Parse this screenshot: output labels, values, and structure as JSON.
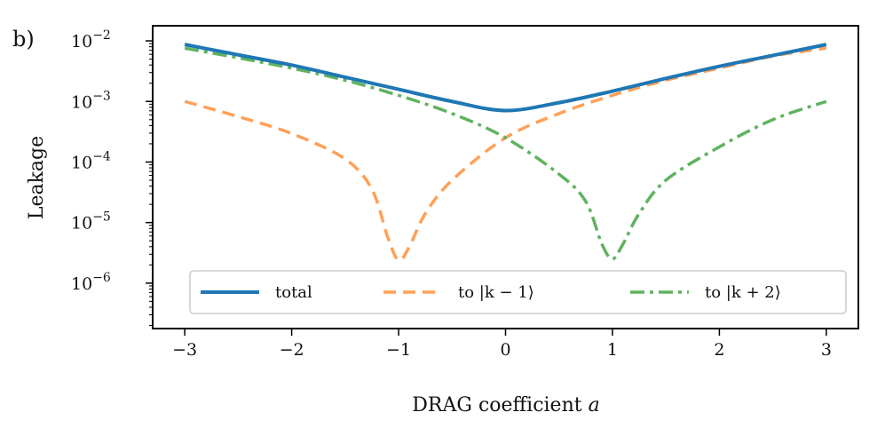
{
  "panel_label": "b)",
  "chart_data": {
    "type": "line",
    "xlabel": "DRAG coefficient a",
    "ylabel": "Leakage",
    "xlim": [
      -3.3,
      3.3
    ],
    "ylim_log10": [
      -6.75,
      -1.75
    ],
    "x_ticks": [
      {
        "value": -3,
        "label": "−3"
      },
      {
        "value": -2,
        "label": "−2"
      },
      {
        "value": -1,
        "label": "−1"
      },
      {
        "value": 0,
        "label": "0"
      },
      {
        "value": 1,
        "label": "1"
      },
      {
        "value": 2,
        "label": "2"
      },
      {
        "value": 3,
        "label": "3"
      }
    ],
    "y_ticks": [
      {
        "exp": -2,
        "label": "10",
        "sup": "−2"
      },
      {
        "exp": -3,
        "label": "10",
        "sup": "−3"
      },
      {
        "exp": -4,
        "label": "10",
        "sup": "−4"
      },
      {
        "exp": -5,
        "label": "10",
        "sup": "−5"
      },
      {
        "exp": -6,
        "label": "10",
        "sup": "−6"
      }
    ],
    "legend_position": "lower-center",
    "series": [
      {
        "name": "total",
        "legend": "total",
        "color": "#1f77b4",
        "style": "solid",
        "x": [
          -3.0,
          -2.5,
          -2.0,
          -1.5,
          -1.0,
          -0.5,
          0.0,
          0.5,
          1.0,
          1.5,
          2.0,
          2.5,
          3.0
        ],
        "log10y": [
          -2.06,
          -2.23,
          -2.4,
          -2.6,
          -2.8,
          -3.0,
          -3.15,
          -3.02,
          -2.83,
          -2.62,
          -2.42,
          -2.24,
          -2.06
        ]
      },
      {
        "name": "to |k-1>",
        "legend": "to |k − 1⟩",
        "color": "#ffa057",
        "style": "dashed",
        "x": [
          -3.0,
          -2.5,
          -2.0,
          -1.5,
          -1.25,
          -1.1,
          -1.0,
          -0.9,
          -0.75,
          -0.5,
          0.0,
          0.5,
          1.0,
          1.5,
          2.0,
          2.5,
          3.0
        ],
        "log10y": [
          -3.0,
          -3.25,
          -3.53,
          -3.95,
          -4.45,
          -5.25,
          -5.62,
          -5.4,
          -4.85,
          -4.3,
          -3.6,
          -3.2,
          -2.9,
          -2.65,
          -2.45,
          -2.25,
          -2.12
        ]
      },
      {
        "name": "to |k+2>",
        "legend": "to |k + 2⟩",
        "color": "#5fb35f",
        "style": "dashdot",
        "x": [
          -3.0,
          -2.5,
          -2.0,
          -1.5,
          -1.0,
          -0.5,
          0.0,
          0.5,
          0.75,
          0.9,
          1.0,
          1.1,
          1.25,
          1.5,
          2.0,
          2.5,
          3.0
        ],
        "log10y": [
          -2.12,
          -2.28,
          -2.45,
          -2.65,
          -2.9,
          -3.2,
          -3.6,
          -4.2,
          -4.65,
          -5.35,
          -5.6,
          -5.35,
          -4.85,
          -4.3,
          -3.75,
          -3.3,
          -3.0
        ]
      }
    ]
  }
}
